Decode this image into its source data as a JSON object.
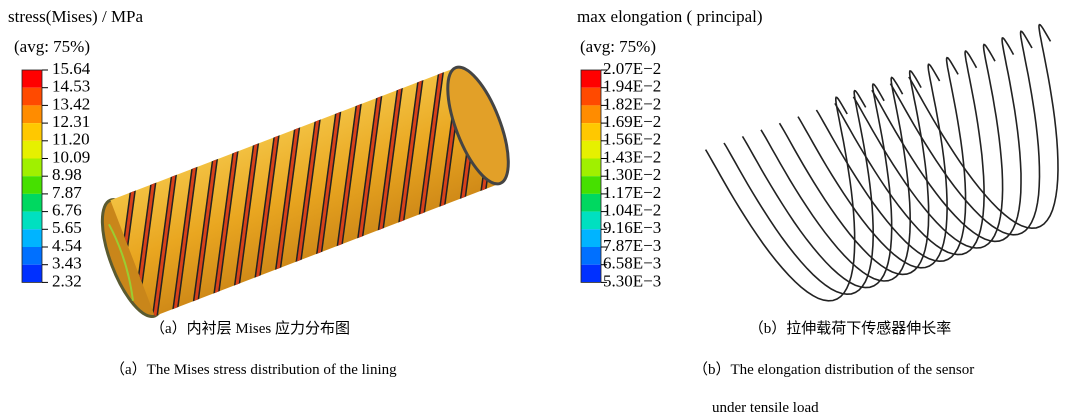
{
  "panels": [
    {
      "title": "stress(Mises) / MPa",
      "subtitle": "(avg: 75%)",
      "legend": [
        "15.64",
        "14.53",
        "13.42",
        "12.31",
        "11.20",
        "10.09",
        "8.98",
        "7.87",
        "6.76",
        "5.65",
        "4.54",
        "3.43",
        "2.32"
      ],
      "caption_cn": "（a）内衬层 Mises 应力分布图",
      "caption_en": [
        "（a）The Mises stress distribution of the lining"
      ]
    },
    {
      "title": "max elongation ( principal)",
      "subtitle": "(avg: 75%)",
      "legend": [
        "2.07E−2",
        "1.94E−2",
        "1.82E−2",
        "1.69E−2",
        "1.56E−2",
        "1.43E−2",
        "1.30E−2",
        "1.17E−2",
        "1.04E−2",
        "9.16E−3",
        "7.87E−3",
        "6.58E−3",
        "5.30E−3"
      ],
      "caption_cn": "（b）拉伸载荷下传感器伸长率",
      "caption_en": [
        "（b）The elongation distribution of the sensor",
        "under tensile load"
      ]
    }
  ]
}
